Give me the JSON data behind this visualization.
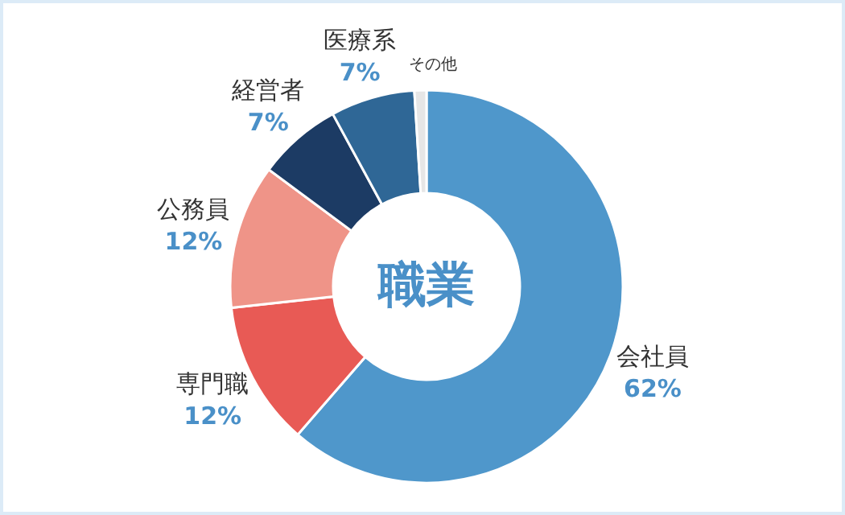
{
  "chart_data": {
    "type": "donut",
    "title": "職業",
    "categories": [
      "会社員",
      "専門職",
      "公務員",
      "経営者",
      "医療系",
      "その他"
    ],
    "values": [
      62,
      12,
      12,
      7,
      7,
      1
    ],
    "value_labels": [
      "62%",
      "12%",
      "12%",
      "7%",
      "7%",
      null
    ],
    "colors": [
      "#4f97cb",
      "#e85a55",
      "#ef9488",
      "#1c3b64",
      "#2f6796",
      "#e6e6e6"
    ]
  }
}
